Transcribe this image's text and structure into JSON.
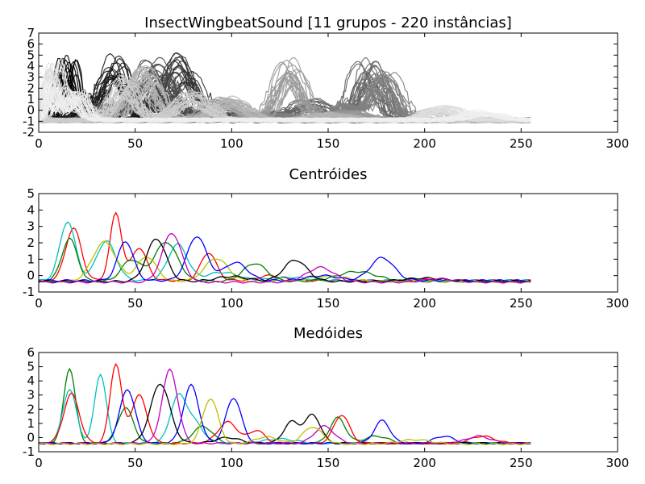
{
  "chart_data": [
    {
      "type": "line",
      "title": "InsectWingbeatSound [11 grupos - 220 instâncias]",
      "xlabel": "",
      "ylabel": "",
      "xlim": [
        0,
        300
      ],
      "ylim": [
        -2,
        7
      ],
      "xticks": [
        0,
        50,
        100,
        150,
        200,
        250,
        300
      ],
      "yticks": [
        -2,
        -1,
        0,
        1,
        2,
        3,
        4,
        5,
        6,
        7
      ],
      "grid": false,
      "legend": "none",
      "colors": [
        "#000000",
        "#1a1a1a",
        "#333333",
        "#4d4d4d",
        "#666666",
        "#808080",
        "#999999",
        "#b3b3b3",
        "#cccccc",
        "#dddddd",
        "#eeeeee"
      ],
      "series_length": 256,
      "series_per_group": 20,
      "group_peaks": [
        [
          [
            15,
            5.6,
            3.0
          ],
          [
            30,
            0.8,
            6.0
          ],
          [
            60,
            0.3,
            10.0
          ]
        ],
        [
          [
            40,
            5.8,
            6.0
          ],
          [
            25,
            1.2,
            5.0
          ],
          [
            70,
            0.5,
            8.0
          ]
        ],
        [
          [
            75,
            5.9,
            7.0
          ],
          [
            50,
            2.0,
            8.0
          ],
          [
            100,
            0.6,
            10.0
          ]
        ],
        [
          [
            60,
            5.5,
            8.0
          ],
          [
            35,
            1.5,
            6.0
          ],
          [
            90,
            0.8,
            10.0
          ]
        ],
        [
          [
            170,
            5.4,
            6.0
          ],
          [
            140,
            1.8,
            8.0
          ],
          [
            115,
            0.6,
            10.0
          ]
        ],
        [
          [
            180,
            4.5,
            6.0
          ],
          [
            160,
            1.5,
            6.0
          ],
          [
            125,
            0.5,
            10.0
          ]
        ],
        [
          [
            130,
            5.6,
            6.0
          ],
          [
            95,
            2.0,
            8.0
          ],
          [
            160,
            0.8,
            10.0
          ]
        ],
        [
          [
            55,
            4.8,
            7.0
          ],
          [
            100,
            2.0,
            8.0
          ],
          [
            150,
            0.6,
            10.0
          ]
        ],
        [
          [
            45,
            3.8,
            6.0
          ],
          [
            80,
            2.5,
            8.0
          ],
          [
            205,
            1.0,
            6.0
          ]
        ],
        [
          [
            8,
            5.2,
            3.0
          ],
          [
            20,
            2.5,
            4.0
          ],
          [
            210,
            1.2,
            8.0
          ]
        ],
        [
          [
            5,
            4.0,
            3.0
          ],
          [
            18,
            3.0,
            4.0
          ],
          [
            230,
            0.8,
            8.0
          ]
        ]
      ]
    },
    {
      "type": "line",
      "title": "Centróides",
      "xlabel": "",
      "ylabel": "",
      "xlim": [
        0,
        300
      ],
      "ylim": [
        -1,
        5
      ],
      "xticks": [
        0,
        50,
        100,
        150,
        200,
        250,
        300
      ],
      "yticks": [
        -1,
        0,
        1,
        2,
        3,
        4,
        5
      ],
      "grid": false,
      "legend": "none",
      "series_length": 256,
      "series": [
        {
          "color": "#ff0000",
          "base": -0.3,
          "peaks": [
            [
              18,
              3.2,
              4.0
            ],
            [
              40,
              4.1,
              3.0
            ],
            [
              52,
              2.0,
              4.0
            ],
            [
              88,
              1.7,
              4.0
            ],
            [
              120,
              0.3,
              6.0
            ],
            [
              205,
              0.1,
              6.0
            ]
          ]
        },
        {
          "color": "#00bfbf",
          "base": -0.3,
          "peaks": [
            [
              15,
              3.6,
              4.0
            ],
            [
              35,
              2.4,
              5.0
            ],
            [
              72,
              2.2,
              5.0
            ],
            [
              95,
              0.5,
              8.0
            ],
            [
              130,
              0.2,
              8.0
            ]
          ]
        },
        {
          "color": "#008000",
          "base": -0.35,
          "peaks": [
            [
              16,
              2.6,
              4.0
            ],
            [
              48,
              1.3,
              5.0
            ],
            [
              66,
              2.4,
              6.0
            ],
            [
              112,
              1.1,
              6.0
            ],
            [
              165,
              0.6,
              10.0
            ]
          ]
        },
        {
          "color": "#bfbf00",
          "base": -0.35,
          "peaks": [
            [
              34,
              2.4,
              6.0
            ],
            [
              56,
              1.5,
              5.0
            ],
            [
              92,
              1.4,
              6.0
            ],
            [
              150,
              0.3,
              10.0
            ]
          ]
        },
        {
          "color": "#0000ff",
          "base": -0.3,
          "peaks": [
            [
              45,
              2.4,
              4.0
            ],
            [
              82,
              2.7,
              5.0
            ],
            [
              102,
              1.1,
              6.0
            ],
            [
              147,
              0.3,
              8.0
            ],
            [
              178,
              1.4,
              6.0
            ]
          ]
        },
        {
          "color": "#000000",
          "base": -0.35,
          "peaks": [
            [
              61,
              2.6,
              5.0
            ],
            [
              133,
              1.3,
              6.0
            ],
            [
              100,
              0.3,
              8.0
            ],
            [
              200,
              0.2,
              10.0
            ]
          ]
        },
        {
          "color": "#bf00bf",
          "base": -0.4,
          "peaks": [
            [
              69,
              3.0,
              5.0
            ],
            [
              146,
              0.9,
              7.0
            ],
            [
              208,
              0.2,
              8.0
            ]
          ]
        }
      ]
    },
    {
      "type": "line",
      "title": "Medóides",
      "xlabel": "",
      "ylabel": "",
      "xlim": [
        0,
        300
      ],
      "ylim": [
        -1,
        6
      ],
      "xticks": [
        0,
        50,
        100,
        150,
        200,
        250,
        300
      ],
      "yticks": [
        -1,
        0,
        1,
        2,
        3,
        4,
        5,
        6
      ],
      "grid": false,
      "legend": "none",
      "series_length": 256,
      "series": [
        {
          "color": "#008000",
          "base": -0.4,
          "peaks": [
            [
              16,
              5.3,
              3.0
            ],
            [
              45,
              2.5,
              4.0
            ],
            [
              85,
              1.2,
              5.0
            ],
            [
              155,
              1.8,
              4.0
            ],
            [
              175,
              0.5,
              6.0
            ]
          ]
        },
        {
          "color": "#00bfbf",
          "base": -0.4,
          "peaks": [
            [
              16,
              3.8,
              3.5
            ],
            [
              32,
              4.9,
              3.0
            ],
            [
              72,
              3.0,
              4.0
            ],
            [
              80,
              1.5,
              5.0
            ],
            [
              125,
              0.3,
              8.0
            ]
          ]
        },
        {
          "color": "#ff0000",
          "base": -0.4,
          "peaks": [
            [
              17,
              3.5,
              4.0
            ],
            [
              40,
              5.6,
              3.0
            ],
            [
              52,
              3.4,
              4.0
            ],
            [
              98,
              1.5,
              5.0
            ],
            [
              113,
              0.9,
              4.0
            ],
            [
              157,
              2.0,
              4.0
            ],
            [
              230,
              0.5,
              6.0
            ]
          ]
        },
        {
          "color": "#0000ff",
          "base": -0.4,
          "peaks": [
            [
              46,
              3.8,
              4.0
            ],
            [
              79,
              4.1,
              4.0
            ],
            [
              101,
              3.2,
              4.0
            ],
            [
              178,
              1.6,
              4.0
            ],
            [
              210,
              0.5,
              5.0
            ]
          ]
        },
        {
          "color": "#000000",
          "base": -0.4,
          "peaks": [
            [
              63,
              4.2,
              5.0
            ],
            [
              131,
              1.5,
              4.0
            ],
            [
              142,
              2.0,
              4.0
            ],
            [
              98,
              0.4,
              6.0
            ]
          ]
        },
        {
          "color": "#bf00bf",
          "base": -0.4,
          "peaks": [
            [
              68,
              5.2,
              4.0
            ],
            [
              148,
              1.2,
              5.0
            ],
            [
              228,
              0.5,
              6.0
            ]
          ]
        },
        {
          "color": "#bfbf00",
          "base": -0.45,
          "peaks": [
            [
              89,
              3.2,
              4.0
            ],
            [
              118,
              0.5,
              6.0
            ],
            [
              142,
              1.2,
              5.0
            ],
            [
              195,
              0.3,
              8.0
            ]
          ]
        }
      ]
    }
  ]
}
